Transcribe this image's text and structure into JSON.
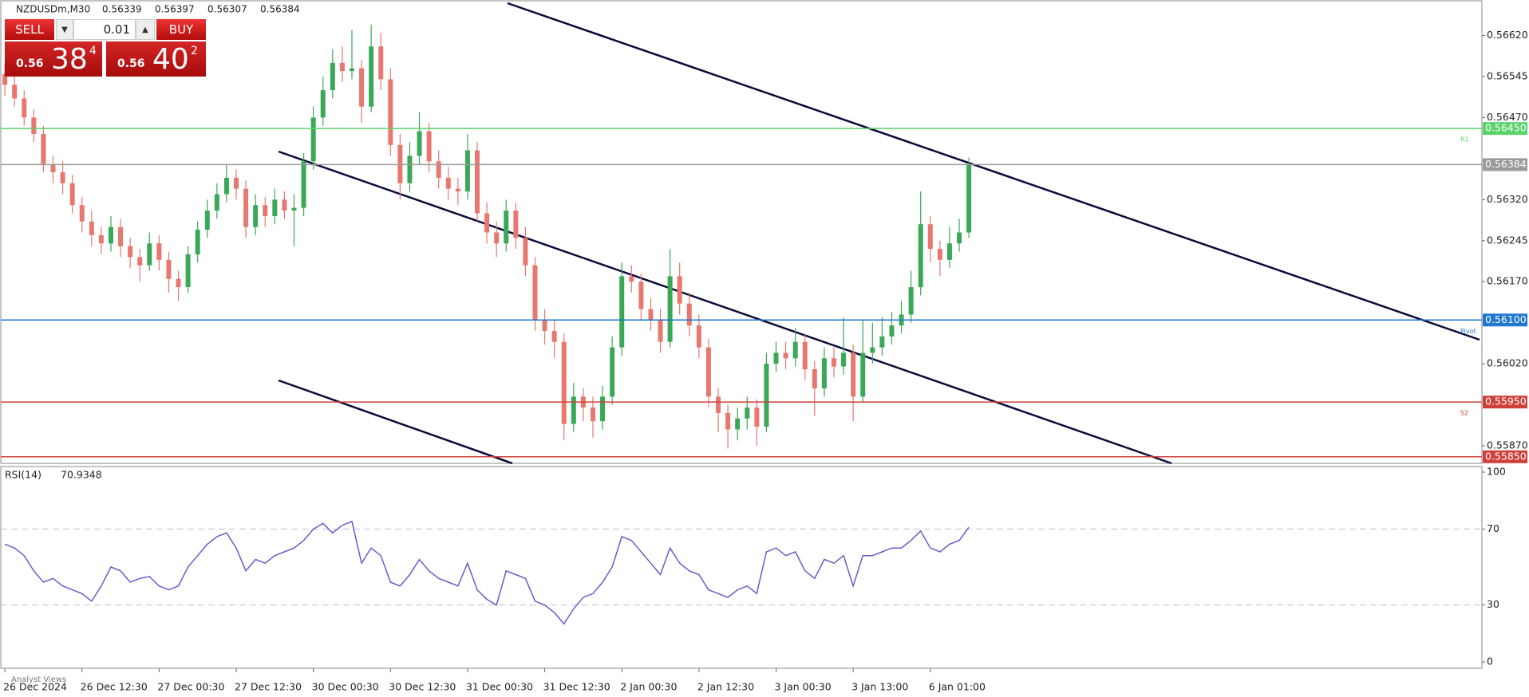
{
  "chart_data": {
    "type": "candlestick",
    "symbol": "NZDUSDm,M30",
    "ohlc_header": [
      0.56339,
      0.56397,
      0.56307,
      0.56384
    ],
    "trade_panel": {
      "sell": "SELL",
      "buy": "BUY",
      "lot": "0.01",
      "sell_price": {
        "big_figure": "0.56",
        "pips": "38",
        "fraction": "4"
      },
      "buy_price": {
        "big_figure": "0.56",
        "pips": "40",
        "fraction": "2"
      }
    },
    "categories": [
      "26 Dec 2024",
      null,
      null,
      null,
      null,
      null,
      null,
      null,
      "26 Dec 12:30",
      null,
      null,
      null,
      null,
      null,
      null,
      null,
      "27 Dec 00:30",
      null,
      null,
      null,
      null,
      null,
      null,
      null,
      "27 Dec 12:30",
      null,
      null,
      null,
      null,
      null,
      null,
      null,
      "30 Dec 00:30",
      null,
      null,
      null,
      null,
      null,
      null,
      null,
      "30 Dec 12:30",
      null,
      null,
      null,
      null,
      null,
      null,
      null,
      "31 Dec 00:30",
      null,
      null,
      null,
      null,
      null,
      null,
      null,
      "31 Dec 12:30",
      null,
      null,
      null,
      null,
      null,
      null,
      null,
      "2 Jan 00:30",
      null,
      null,
      null,
      null,
      null,
      null,
      null,
      "2 Jan 12:30",
      null,
      null,
      null,
      null,
      null,
      null,
      null,
      "3 Jan 00:30",
      null,
      null,
      null,
      null,
      null,
      null,
      null,
      "3 Jan 13:00",
      null,
      null,
      null,
      null,
      null,
      null,
      null,
      "6 Jan 01:00",
      null,
      null,
      null,
      null
    ],
    "open": [
      0.5655,
      0.5653,
      0.56505,
      0.5647,
      0.5644,
      0.56385,
      0.5637,
      0.5635,
      0.5631,
      0.5628,
      0.56255,
      0.5624,
      0.5627,
      0.56235,
      0.56215,
      0.562,
      0.5624,
      0.5621,
      0.56175,
      0.5616,
      0.5622,
      0.56265,
      0.563,
      0.5633,
      0.5636,
      0.5634,
      0.5627,
      0.5631,
      0.5629,
      0.5632,
      0.563,
      0.56305,
      0.5639,
      0.5647,
      0.5652,
      0.5657,
      0.56555,
      0.5656,
      0.5649,
      0.566,
      0.5654,
      0.5642,
      0.5635,
      0.564,
      0.56445,
      0.5639,
      0.5636,
      0.5634,
      0.56335,
      0.5641,
      0.56295,
      0.5626,
      0.5624,
      0.563,
      0.5625,
      0.562,
      0.561,
      0.5608,
      0.5606,
      0.5591,
      0.5596,
      0.5594,
      0.55915,
      0.5596,
      0.5605,
      0.5618,
      0.5617,
      0.5612,
      0.561,
      0.5606,
      0.5618,
      0.5613,
      0.5609,
      0.5605,
      0.5596,
      0.5593,
      0.559,
      0.5592,
      0.5594,
      0.55905,
      0.5602,
      0.5604,
      0.5603,
      0.5606,
      0.5601,
      0.55975,
      0.5603,
      0.56015,
      0.5604,
      0.5596,
      0.5604,
      0.5605,
      0.5607,
      0.5609,
      0.5611,
      0.5616,
      0.56275,
      0.5623,
      0.5621,
      0.5624,
      0.5626
    ],
    "high": [
      0.5657,
      0.56545,
      0.5652,
      0.56485,
      0.56455,
      0.564,
      0.5639,
      0.56365,
      0.56325,
      0.563,
      0.5627,
      0.5629,
      0.56285,
      0.5625,
      0.5623,
      0.5626,
      0.56255,
      0.56225,
      0.5619,
      0.56235,
      0.5628,
      0.5632,
      0.5635,
      0.56385,
      0.56375,
      0.56355,
      0.5633,
      0.56325,
      0.5634,
      0.56335,
      0.5633,
      0.56405,
      0.5649,
      0.56545,
      0.56595,
      0.566,
      0.5663,
      0.56575,
      0.5664,
      0.56625,
      0.5656,
      0.5644,
      0.56425,
      0.5648,
      0.5646,
      0.5641,
      0.5638,
      0.5636,
      0.5644,
      0.56425,
      0.56315,
      0.5628,
      0.5632,
      0.56315,
      0.5627,
      0.56215,
      0.5612,
      0.561,
      0.56075,
      0.55985,
      0.55975,
      0.5596,
      0.5598,
      0.5607,
      0.56205,
      0.562,
      0.56185,
      0.5614,
      0.5612,
      0.5623,
      0.56205,
      0.5615,
      0.5611,
      0.56065,
      0.55975,
      0.55945,
      0.5594,
      0.5596,
      0.55955,
      0.5604,
      0.5606,
      0.5606,
      0.56085,
      0.56075,
      0.56025,
      0.5605,
      0.5605,
      0.56105,
      0.56055,
      0.561,
      0.56095,
      0.56105,
      0.56115,
      0.56135,
      0.5619,
      0.56335,
      0.5629,
      0.56245,
      0.5627,
      0.56285,
      0.56397
    ],
    "low": [
      0.5651,
      0.5649,
      0.56455,
      0.56425,
      0.5637,
      0.5635,
      0.5633,
      0.56295,
      0.5626,
      0.56235,
      0.5622,
      0.56225,
      0.56215,
      0.56195,
      0.5617,
      0.5619,
      0.5619,
      0.5615,
      0.56135,
      0.5615,
      0.56205,
      0.5625,
      0.56285,
      0.56315,
      0.5632,
      0.5625,
      0.56255,
      0.5627,
      0.56275,
      0.56285,
      0.56235,
      0.5629,
      0.56375,
      0.56455,
      0.56505,
      0.56535,
      0.5654,
      0.5646,
      0.5648,
      0.5652,
      0.564,
      0.5632,
      0.56335,
      0.56385,
      0.5637,
      0.5634,
      0.5632,
      0.5631,
      0.5632,
      0.5628,
      0.5624,
      0.56215,
      0.56225,
      0.5623,
      0.5618,
      0.5608,
      0.56055,
      0.5603,
      0.5588,
      0.55895,
      0.55915,
      0.55885,
      0.559,
      0.55945,
      0.56035,
      0.5615,
      0.561,
      0.5608,
      0.5604,
      0.5605,
      0.5611,
      0.5607,
      0.5603,
      0.5594,
      0.55895,
      0.55865,
      0.5588,
      0.559,
      0.5587,
      0.55895,
      0.56005,
      0.5601,
      0.56015,
      0.5599,
      0.55925,
      0.5596,
      0.55995,
      0.56,
      0.55915,
      0.5595,
      0.5602,
      0.56035,
      0.56055,
      0.56075,
      0.56095,
      0.56145,
      0.56205,
      0.5618,
      0.56195,
      0.56225,
      0.5625
    ],
    "close": [
      0.5653,
      0.56505,
      0.5647,
      0.5644,
      0.56385,
      0.5637,
      0.5635,
      0.5631,
      0.5628,
      0.56255,
      0.5624,
      0.5627,
      0.56235,
      0.56215,
      0.562,
      0.5624,
      0.5621,
      0.56175,
      0.5616,
      0.5622,
      0.56265,
      0.563,
      0.5633,
      0.5636,
      0.5634,
      0.5627,
      0.5631,
      0.5629,
      0.5632,
      0.563,
      0.56305,
      0.5639,
      0.5647,
      0.5652,
      0.5657,
      0.56555,
      0.5656,
      0.5649,
      0.566,
      0.5654,
      0.5642,
      0.5635,
      0.564,
      0.56445,
      0.5639,
      0.5636,
      0.5634,
      0.56335,
      0.5641,
      0.56295,
      0.5626,
      0.5624,
      0.563,
      0.5625,
      0.562,
      0.561,
      0.5608,
      0.5606,
      0.5591,
      0.5596,
      0.5594,
      0.55915,
      0.5596,
      0.5605,
      0.5618,
      0.5617,
      0.5612,
      0.561,
      0.5606,
      0.5618,
      0.5613,
      0.5609,
      0.5605,
      0.5596,
      0.5593,
      0.559,
      0.5592,
      0.5594,
      0.55905,
      0.5602,
      0.5604,
      0.5603,
      0.5606,
      0.5601,
      0.55975,
      0.5603,
      0.56015,
      0.5604,
      0.5596,
      0.5604,
      0.5605,
      0.5607,
      0.5609,
      0.5611,
      0.5616,
      0.56275,
      0.5623,
      0.5621,
      0.5624,
      0.5626,
      0.56384
    ],
    "up_color": "#3aa857",
    "down_color": "#e8776f",
    "ylim": [
      0.55838,
      0.56682
    ],
    "yticks": [
      {
        "value": 0.5662,
        "label": "0.56620"
      },
      {
        "value": 0.56545,
        "label": "0.56545"
      },
      {
        "value": 0.5647,
        "label": "0.56470"
      },
      {
        "value": 0.5632,
        "label": "0.56320"
      },
      {
        "value": 0.56245,
        "label": "0.56245"
      },
      {
        "value": 0.5617,
        "label": "0.56170"
      },
      {
        "value": 0.5602,
        "label": "0.56020"
      },
      {
        "value": 0.5587,
        "label": "0.55870"
      }
    ],
    "levels": [
      {
        "value": 0.5645,
        "label": "0.56450",
        "name": "R1",
        "color": "#5ad36a"
      },
      {
        "value": 0.56384,
        "label": "0.56384",
        "color": "#9a9a9a"
      },
      {
        "value": 0.561,
        "label": "0.56100",
        "name": "Pivot",
        "color": "#1f77d0"
      },
      {
        "value": 0.5595,
        "label": "0.55950",
        "name": "S2",
        "color": "#d0403a"
      },
      {
        "value": 0.5585,
        "label": "0.55850",
        "color": "#d0403a"
      }
    ],
    "rsi": {
      "name": "RSI(14)",
      "color": "#6a5acd",
      "ylim": [
        0,
        100
      ],
      "yticks": [
        0,
        30,
        70,
        100
      ],
      "levels": [
        30,
        70
      ],
      "values": [
        62,
        60,
        56,
        48,
        42,
        44,
        40,
        38,
        36,
        32,
        40,
        50,
        48,
        42,
        44,
        45,
        40,
        38,
        40,
        50,
        56,
        62,
        66,
        68,
        60,
        48,
        54,
        52,
        56,
        58,
        60,
        64,
        70,
        73,
        68,
        72,
        74,
        52,
        60,
        56,
        42,
        40,
        46,
        54,
        48,
        44,
        42,
        40,
        52,
        38,
        33,
        30,
        48,
        46,
        44,
        32,
        30,
        26,
        20,
        28,
        34,
        36,
        42,
        50,
        66,
        64,
        58,
        52,
        46,
        60,
        52,
        48,
        46,
        38,
        36,
        34,
        38,
        40,
        36,
        58,
        60,
        56,
        58,
        48,
        44,
        54,
        52,
        56,
        40,
        56,
        56,
        58,
        60,
        60,
        64,
        69,
        60,
        58,
        62,
        64,
        70.9348
      ]
    },
    "analyst_tab": "Analyst Views"
  }
}
